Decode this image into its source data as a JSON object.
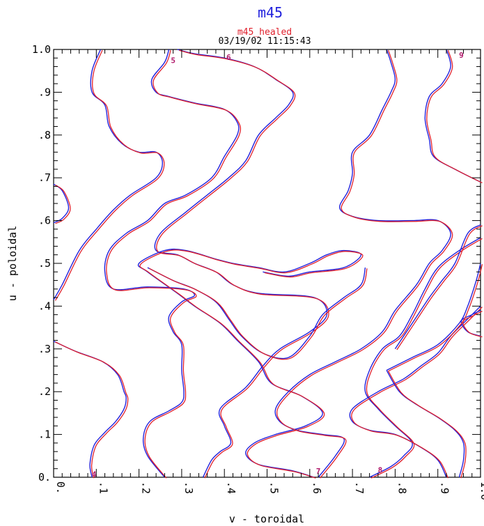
{
  "chart_data": {
    "type": "line",
    "title": "m45",
    "subtitle": "m45_healed",
    "timestamp": "03/19/02 11:15:43",
    "xlabel": "v - toroidal",
    "ylabel": "u - poloidal",
    "xlim": [
      0,
      1
    ],
    "ylim": [
      0,
      1
    ],
    "grid": false,
    "colors": {
      "primary": "#2222dd",
      "healed": "#e0202c",
      "axis": "#000000"
    },
    "x_ticks": [
      "0.",
      ".1",
      ".2",
      ".3",
      ".4",
      ".5",
      ".6",
      ".7",
      ".8",
      ".9",
      "1.0"
    ],
    "y_ticks": [
      "0.",
      ".1",
      ".2",
      ".3",
      ".4",
      ".5",
      ".6",
      ".7",
      ".8",
      ".9",
      "1.0"
    ],
    "contour_labels": [
      {
        "text": "4",
        "x": 0.095,
        "y": 0.007
      },
      {
        "text": "5",
        "x": 0.28,
        "y": 0.975
      },
      {
        "text": "6",
        "x": 0.41,
        "y": 0.982
      },
      {
        "text": "7",
        "x": 0.62,
        "y": 0.015
      },
      {
        "text": "8",
        "x": 0.765,
        "y": 0.017
      },
      {
        "text": "9",
        "x": 0.955,
        "y": 0.987
      }
    ],
    "series": [
      {
        "name": "m45",
        "curves": [
          [
            [
              0.09,
              0
            ],
            [
              0.085,
              0.03
            ],
            [
              0.095,
              0.075
            ],
            [
              0.12,
              0.105
            ],
            [
              0.145,
              0.13
            ],
            [
              0.165,
              0.16
            ],
            [
              0.17,
              0.185
            ],
            [
              0.165,
              0.2
            ],
            [
              0.15,
              0.24
            ],
            [
              0.115,
              0.27
            ],
            [
              0.05,
              0.295
            ],
            [
              0,
              0.318
            ]
          ],
          [
            [
              0,
              0.415
            ],
            [
              0.02,
              0.45
            ],
            [
              0.06,
              0.53
            ],
            [
              0.1,
              0.58
            ],
            [
              0.14,
              0.625
            ],
            [
              0.18,
              0.66
            ],
            [
              0.24,
              0.7
            ],
            [
              0.255,
              0.735
            ],
            [
              0.24,
              0.76
            ],
            [
              0.2,
              0.76
            ],
            [
              0.16,
              0.78
            ],
            [
              0.13,
              0.82
            ],
            [
              0.12,
              0.87
            ],
            [
              0.09,
              0.9
            ],
            [
              0.09,
              0.95
            ],
            [
              0.11,
              1
            ]
          ],
          [
            [
              0,
              0.595
            ],
            [
              0.02,
              0.605
            ],
            [
              0.035,
              0.63
            ],
            [
              0.02,
              0.67
            ],
            [
              0,
              0.685
            ]
          ],
          [
            [
              0.26,
              0
            ],
            [
              0.22,
              0.05
            ],
            [
              0.21,
              0.09
            ],
            [
              0.225,
              0.13
            ],
            [
              0.27,
              0.155
            ],
            [
              0.3,
              0.175
            ],
            [
              0.305,
              0.2
            ],
            [
              0.3,
              0.25
            ],
            [
              0.3,
              0.31
            ],
            [
              0.28,
              0.34
            ],
            [
              0.27,
              0.375
            ],
            [
              0.3,
              0.41
            ],
            [
              0.33,
              0.425
            ],
            [
              0.305,
              0.44
            ],
            [
              0.22,
              0.445
            ],
            [
              0.14,
              0.44
            ],
            [
              0.12,
              0.48
            ],
            [
              0.13,
              0.53
            ],
            [
              0.17,
              0.57
            ],
            [
              0.22,
              0.6
            ],
            [
              0.26,
              0.64
            ],
            [
              0.31,
              0.66
            ],
            [
              0.37,
              0.7
            ],
            [
              0.4,
              0.75
            ],
            [
              0.43,
              0.8
            ],
            [
              0.43,
              0.83
            ],
            [
              0.4,
              0.86
            ],
            [
              0.33,
              0.875
            ],
            [
              0.27,
              0.89
            ],
            [
              0.24,
              0.9
            ],
            [
              0.23,
              0.93
            ],
            [
              0.26,
              0.97
            ],
            [
              0.27,
              1
            ]
          ],
          [
            [
              0.35,
              0
            ],
            [
              0.37,
              0.04
            ],
            [
              0.39,
              0.06
            ],
            [
              0.415,
              0.08
            ],
            [
              0.4,
              0.12
            ],
            [
              0.39,
              0.16
            ],
            [
              0.45,
              0.21
            ],
            [
              0.49,
              0.26
            ],
            [
              0.53,
              0.3
            ],
            [
              0.6,
              0.34
            ],
            [
              0.64,
              0.38
            ],
            [
              0.61,
              0.42
            ],
            [
              0.48,
              0.43
            ],
            [
              0.42,
              0.45
            ],
            [
              0.38,
              0.48
            ],
            [
              0.33,
              0.5
            ],
            [
              0.29,
              0.52
            ],
            [
              0.24,
              0.53
            ],
            [
              0.25,
              0.57
            ],
            [
              0.31,
              0.62
            ],
            [
              0.36,
              0.66
            ],
            [
              0.41,
              0.7
            ],
            [
              0.45,
              0.74
            ],
            [
              0.48,
              0.8
            ],
            [
              0.52,
              0.84
            ],
            [
              0.55,
              0.87
            ],
            [
              0.56,
              0.9
            ],
            [
              0.52,
              0.93
            ],
            [
              0.47,
              0.96
            ],
            [
              0.4,
              0.98
            ],
            [
              0.33,
              0.99
            ],
            [
              0.29,
              1
            ]
          ],
          [
            [
              0.61,
              0
            ],
            [
              0.56,
              0.015
            ],
            [
              0.48,
              0.03
            ],
            [
              0.45,
              0.055
            ],
            [
              0.47,
              0.08
            ],
            [
              0.52,
              0.1
            ],
            [
              0.59,
              0.12
            ],
            [
              0.63,
              0.15
            ],
            [
              0.58,
              0.19
            ],
            [
              0.51,
              0.22
            ],
            [
              0.48,
              0.27
            ],
            [
              0.43,
              0.32
            ],
            [
              0.39,
              0.36
            ],
            [
              0.33,
              0.4
            ],
            [
              0.29,
              0.43
            ],
            [
              0.22,
              0.48
            ],
            [
              0.2,
              0.5
            ],
            [
              0.26,
              0.53
            ],
            [
              0.31,
              0.53
            ],
            [
              0.38,
              0.51
            ],
            [
              0.42,
              0.5
            ],
            [
              0.48,
              0.49
            ],
            [
              0.54,
              0.48
            ],
            [
              0.6,
              0.5
            ],
            [
              0.64,
              0.52
            ],
            [
              0.68,
              0.53
            ],
            [
              0.72,
              0.52
            ],
            [
              0.68,
              0.49
            ],
            [
              0.6,
              0.48
            ],
            [
              0.55,
              0.47
            ],
            [
              0.49,
              0.48
            ]
          ],
          [
            [
              0.22,
              0.49
            ],
            [
              0.28,
              0.46
            ],
            [
              0.33,
              0.44
            ],
            [
              0.38,
              0.41
            ],
            [
              0.41,
              0.37
            ],
            [
              0.44,
              0.33
            ],
            [
              0.49,
              0.29
            ],
            [
              0.55,
              0.28
            ],
            [
              0.6,
              0.33
            ],
            [
              0.63,
              0.38
            ],
            [
              0.68,
              0.42
            ],
            [
              0.72,
              0.45
            ],
            [
              0.73,
              0.49
            ]
          ],
          [
            [
              0.62,
              0
            ],
            [
              0.66,
              0.05
            ],
            [
              0.68,
              0.09
            ],
            [
              0.63,
              0.1
            ],
            [
              0.57,
              0.11
            ],
            [
              0.53,
              0.13
            ],
            [
              0.52,
              0.16
            ],
            [
              0.55,
              0.2
            ],
            [
              0.6,
              0.24
            ],
            [
              0.66,
              0.27
            ],
            [
              0.72,
              0.3
            ],
            [
              0.77,
              0.34
            ],
            [
              0.8,
              0.39
            ],
            [
              0.85,
              0.45
            ],
            [
              0.88,
              0.5
            ],
            [
              0.91,
              0.53
            ],
            [
              0.93,
              0.57
            ],
            [
              0.9,
              0.6
            ],
            [
              0.84,
              0.6
            ],
            [
              0.76,
              0.6
            ],
            [
              0.7,
              0.61
            ],
            [
              0.67,
              0.63
            ],
            [
              0.69,
              0.67
            ],
            [
              0.7,
              0.71
            ],
            [
              0.7,
              0.76
            ],
            [
              0.74,
              0.8
            ],
            [
              0.77,
              0.86
            ],
            [
              0.79,
              0.9
            ],
            [
              0.8,
              0.93
            ],
            [
              0.79,
              0.97
            ],
            [
              0.78,
              1
            ]
          ],
          [
            [
              0.74,
              0
            ],
            [
              0.79,
              0.025
            ],
            [
              0.82,
              0.05
            ],
            [
              0.84,
              0.08
            ],
            [
              0.8,
              0.12
            ],
            [
              0.76,
              0.16
            ],
            [
              0.73,
              0.2
            ],
            [
              0.74,
              0.25
            ],
            [
              0.77,
              0.3
            ],
            [
              0.81,
              0.33
            ],
            [
              0.84,
              0.38
            ],
            [
              0.87,
              0.44
            ],
            [
              0.9,
              0.49
            ],
            [
              0.95,
              0.53
            ],
            [
              1,
              0.56
            ]
          ],
          [
            [
              0.92,
              0
            ],
            [
              0.9,
              0.04
            ],
            [
              0.86,
              0.07
            ],
            [
              0.8,
              0.1
            ],
            [
              0.74,
              0.11
            ],
            [
              0.7,
              0.13
            ],
            [
              0.7,
              0.16
            ],
            [
              0.76,
              0.2
            ],
            [
              0.82,
              0.23
            ],
            [
              0.86,
              0.26
            ],
            [
              0.9,
              0.29
            ],
            [
              0.93,
              0.33
            ],
            [
              0.97,
              0.37
            ],
            [
              1,
              0.4
            ]
          ],
          [
            [
              1,
              0.33
            ],
            [
              0.97,
              0.34
            ],
            [
              0.955,
              0.365
            ],
            [
              0.98,
              0.38
            ],
            [
              1,
              0.39
            ]
          ],
          [
            [
              0.78,
              0.25
            ],
            [
              0.81,
              0.2
            ],
            [
              0.85,
              0.17
            ],
            [
              0.9,
              0.14
            ],
            [
              0.94,
              0.11
            ],
            [
              0.96,
              0.08
            ],
            [
              0.96,
              0.04
            ],
            [
              0.95,
              0
            ]
          ],
          [
            [
              0.78,
              0.25
            ],
            [
              0.84,
              0.28
            ],
            [
              0.9,
              0.31
            ],
            [
              0.95,
              0.36
            ],
            [
              0.97,
              0.4
            ],
            [
              0.99,
              0.46
            ],
            [
              1,
              0.5
            ]
          ],
          [
            [
              1,
              0.59
            ],
            [
              0.97,
              0.57
            ],
            [
              0.94,
              0.5
            ],
            [
              0.91,
              0.46
            ],
            [
              0.88,
              0.42
            ],
            [
              0.84,
              0.36
            ],
            [
              0.8,
              0.3
            ]
          ],
          [
            [
              0.92,
              1
            ],
            [
              0.93,
              0.96
            ],
            [
              0.91,
              0.92
            ],
            [
              0.88,
              0.89
            ],
            [
              0.87,
              0.84
            ],
            [
              0.88,
              0.79
            ],
            [
              0.89,
              0.75
            ],
            [
              0.94,
              0.72
            ],
            [
              1,
              0.69
            ]
          ]
        ]
      },
      {
        "name": "m45_healed"
      }
    ]
  }
}
